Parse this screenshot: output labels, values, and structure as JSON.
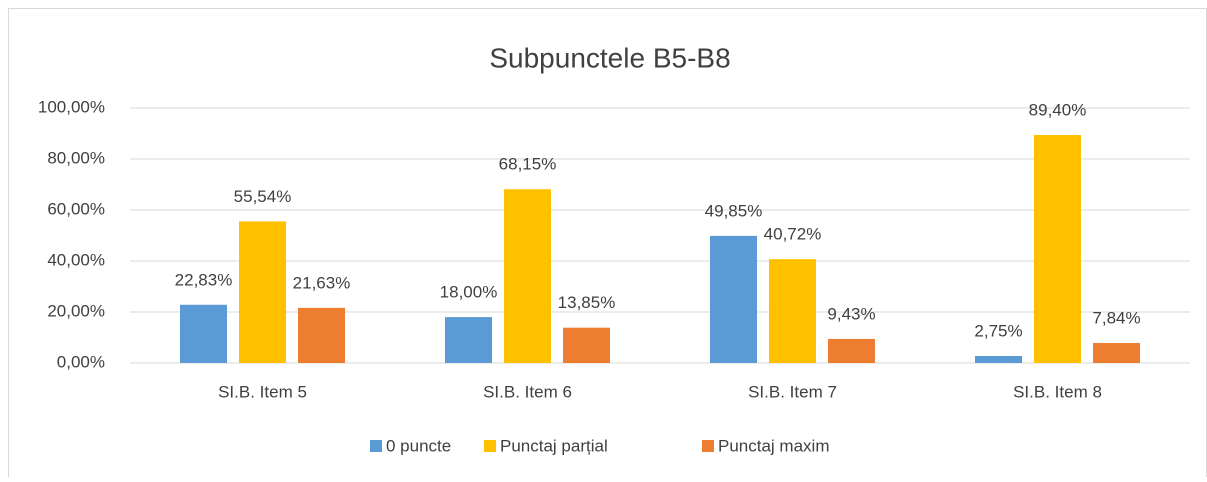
{
  "chart_data": {
    "type": "bar",
    "title": "Subpunctele B5-B8",
    "categories": [
      "SI.B. Item 5",
      "SI.B. Item 6",
      "SI.B. Item 7",
      "SI.B. Item 8"
    ],
    "series": [
      {
        "name": "0 puncte",
        "color": "#5b9bd5",
        "values": [
          22.83,
          18.0,
          49.85,
          2.75
        ],
        "value_labels": [
          "22,83%",
          "18,00%",
          "49,85%",
          "2,75%"
        ]
      },
      {
        "name": "Punctaj parțial",
        "color": "#ffc000",
        "values": [
          55.54,
          68.15,
          40.72,
          89.4
        ],
        "value_labels": [
          "55,54%",
          "68,15%",
          "40,72%",
          "89,40%"
        ]
      },
      {
        "name": "Punctaj maxim",
        "color": "#ed7d31",
        "values": [
          21.63,
          13.85,
          9.43,
          7.84
        ],
        "value_labels": [
          "21,63%",
          "13,85%",
          "9,43%",
          "7,84%"
        ]
      }
    ],
    "ylim": [
      0,
      100
    ],
    "yticks": [
      {
        "value": 0,
        "label": "0,00%"
      },
      {
        "value": 20,
        "label": "20,00%"
      },
      {
        "value": 40,
        "label": "40,00%"
      },
      {
        "value": 60,
        "label": "60,00%"
      },
      {
        "value": 80,
        "label": "80,00%"
      },
      {
        "value": 100,
        "label": "100,00%"
      }
    ],
    "grid": true,
    "legend": "bottom"
  }
}
